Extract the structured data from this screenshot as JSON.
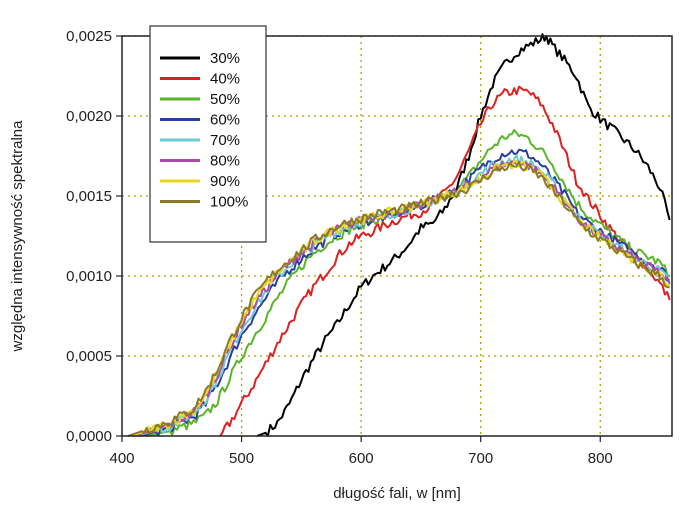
{
  "chart_data": {
    "type": "line",
    "xlabel": "długość fali, w [nm]",
    "ylabel": "względna intensywność spektralna",
    "xlim": [
      400,
      860
    ],
    "ylim": [
      0,
      0.0025
    ],
    "x_ticks": [
      {
        "value": 400,
        "label": "400"
      },
      {
        "value": 500,
        "label": "500"
      },
      {
        "value": 600,
        "label": "600"
      },
      {
        "value": 700,
        "label": "700"
      },
      {
        "value": 800,
        "label": "800"
      }
    ],
    "y_ticks": [
      {
        "value": 0,
        "label": "0,0000"
      },
      {
        "value": 0.0005,
        "label": "0,0005"
      },
      {
        "value": 0.001,
        "label": "0,0010"
      },
      {
        "value": 0.0015,
        "label": "0,0015"
      },
      {
        "value": 0.002,
        "label": "0,0020"
      },
      {
        "value": 0.0025,
        "label": "0,0025"
      }
    ],
    "grid": true,
    "legend_position": "top-left",
    "series": [
      {
        "name": "30%",
        "color": "#000000",
        "x": [
          513,
          520,
          530,
          540,
          550,
          560,
          570,
          580,
          590,
          600,
          610,
          620,
          630,
          640,
          650,
          660,
          670,
          680,
          690,
          700,
          710,
          720,
          730,
          740,
          750,
          755,
          760,
          770,
          780,
          790,
          800,
          810,
          820,
          830,
          840,
          850,
          858
        ],
        "y": [
          0,
          2e-05,
          8e-05,
          0.0002,
          0.00035,
          0.00048,
          0.0006,
          0.0007,
          0.00082,
          0.00093,
          0.001,
          0.00106,
          0.00112,
          0.0012,
          0.0013,
          0.00133,
          0.00142,
          0.00155,
          0.00175,
          0.002,
          0.0022,
          0.00232,
          0.0024,
          0.00244,
          0.00248,
          0.0025,
          0.00244,
          0.00235,
          0.00225,
          0.00206,
          0.00198,
          0.00192,
          0.00185,
          0.00178,
          0.00168,
          0.00155,
          0.00135
        ]
      },
      {
        "name": "40%",
        "color": "#e02020",
        "x": [
          482,
          490,
          500,
          510,
          520,
          530,
          540,
          550,
          560,
          570,
          580,
          590,
          600,
          610,
          620,
          630,
          640,
          650,
          660,
          670,
          680,
          690,
          700,
          710,
          720,
          730,
          740,
          750,
          760,
          770,
          780,
          790,
          800,
          810,
          820,
          830,
          840,
          850,
          858
        ],
        "y": [
          0,
          8e-05,
          0.0002,
          0.00032,
          0.00045,
          0.00058,
          0.0007,
          0.00082,
          0.00093,
          0.00102,
          0.00112,
          0.0012,
          0.00125,
          0.00128,
          0.00132,
          0.00135,
          0.00138,
          0.0014,
          0.00145,
          0.00152,
          0.00162,
          0.00178,
          0.00195,
          0.00208,
          0.00214,
          0.00216,
          0.00215,
          0.00208,
          0.00195,
          0.00178,
          0.0016,
          0.00148,
          0.00138,
          0.00128,
          0.0012,
          0.00112,
          0.00105,
          0.00095,
          0.00085
        ]
      },
      {
        "name": "50%",
        "color": "#5ab52a",
        "x": [
          420,
          440,
          460,
          470,
          480,
          490,
          500,
          510,
          520,
          530,
          540,
          550,
          560,
          570,
          580,
          590,
          600,
          610,
          620,
          630,
          640,
          650,
          660,
          670,
          680,
          690,
          700,
          710,
          720,
          730,
          740,
          750,
          760,
          770,
          780,
          790,
          800,
          810,
          820,
          830,
          840,
          850,
          858
        ],
        "y": [
          0,
          3e-05,
          8e-05,
          0.00013,
          0.00022,
          0.00036,
          0.0005,
          0.00062,
          0.00074,
          0.00086,
          0.00097,
          0.00106,
          0.00114,
          0.0012,
          0.00125,
          0.00129,
          0.00132,
          0.00135,
          0.00137,
          0.00139,
          0.00141,
          0.00144,
          0.00147,
          0.0015,
          0.00154,
          0.00162,
          0.00172,
          0.00181,
          0.00187,
          0.00189,
          0.00186,
          0.00179,
          0.0017,
          0.00158,
          0.00146,
          0.00138,
          0.00132,
          0.00126,
          0.0012,
          0.00115,
          0.00112,
          0.00108,
          0.001
        ]
      },
      {
        "name": "60%",
        "color": "#2a3fa0",
        "x": [
          415,
          440,
          460,
          470,
          480,
          490,
          500,
          510,
          520,
          530,
          540,
          550,
          560,
          570,
          580,
          590,
          600,
          610,
          620,
          630,
          640,
          650,
          660,
          670,
          680,
          690,
          700,
          710,
          720,
          730,
          740,
          750,
          760,
          770,
          780,
          790,
          800,
          810,
          820,
          830,
          840,
          850,
          858
        ],
        "y": [
          0,
          5e-05,
          0.00012,
          0.0002,
          0.00033,
          0.00048,
          0.00063,
          0.00075,
          0.00086,
          0.00096,
          0.00104,
          0.00111,
          0.00117,
          0.00122,
          0.00127,
          0.0013,
          0.00133,
          0.00135,
          0.00137,
          0.00139,
          0.00141,
          0.00144,
          0.00147,
          0.0015,
          0.00154,
          0.0016,
          0.00167,
          0.00173,
          0.00177,
          0.00178,
          0.00176,
          0.0017,
          0.00161,
          0.00151,
          0.0014,
          0.00133,
          0.00128,
          0.00123,
          0.00118,
          0.00113,
          0.00109,
          0.00105,
          0.00098
        ]
      },
      {
        "name": "70%",
        "color": "#6fc8d8",
        "x": [
          412,
          440,
          460,
          470,
          480,
          490,
          500,
          510,
          520,
          530,
          540,
          550,
          560,
          570,
          580,
          590,
          600,
          610,
          620,
          630,
          640,
          650,
          660,
          670,
          680,
          690,
          700,
          710,
          720,
          730,
          740,
          750,
          760,
          770,
          780,
          790,
          800,
          810,
          820,
          830,
          840,
          850,
          858
        ],
        "y": [
          0,
          6e-05,
          0.00014,
          0.00023,
          0.00036,
          0.00052,
          0.00067,
          0.00079,
          0.0009,
          0.00099,
          0.00107,
          0.00113,
          0.00119,
          0.00124,
          0.00128,
          0.00131,
          0.00134,
          0.00136,
          0.00138,
          0.0014,
          0.00142,
          0.00144,
          0.00147,
          0.0015,
          0.00153,
          0.00158,
          0.00164,
          0.00169,
          0.00172,
          0.00173,
          0.00171,
          0.00166,
          0.00158,
          0.00148,
          0.00138,
          0.00131,
          0.00126,
          0.00121,
          0.00116,
          0.00111,
          0.00107,
          0.00103,
          0.00096
        ]
      },
      {
        "name": "80%",
        "color": "#b04aa8",
        "x": [
          410,
          440,
          460,
          470,
          480,
          490,
          500,
          510,
          520,
          530,
          540,
          550,
          560,
          570,
          580,
          590,
          600,
          610,
          620,
          630,
          640,
          650,
          660,
          670,
          680,
          690,
          700,
          710,
          720,
          730,
          740,
          750,
          760,
          770,
          780,
          790,
          800,
          810,
          820,
          830,
          840,
          850,
          858
        ],
        "y": [
          0,
          7e-05,
          0.00015,
          0.00025,
          0.00039,
          0.00055,
          0.0007,
          0.00082,
          0.00092,
          0.00101,
          0.00108,
          0.00114,
          0.0012,
          0.00125,
          0.00129,
          0.00132,
          0.00135,
          0.00137,
          0.00139,
          0.00141,
          0.00142,
          0.00144,
          0.00147,
          0.0015,
          0.00153,
          0.00157,
          0.00162,
          0.00167,
          0.0017,
          0.00171,
          0.00169,
          0.00164,
          0.00156,
          0.00147,
          0.00137,
          0.0013,
          0.00125,
          0.0012,
          0.00115,
          0.0011,
          0.00106,
          0.00102,
          0.00095
        ]
      },
      {
        "name": "90%",
        "color": "#e8d818",
        "x": [
          408,
          440,
          460,
          470,
          480,
          490,
          500,
          510,
          520,
          530,
          540,
          550,
          560,
          570,
          580,
          590,
          600,
          610,
          620,
          630,
          640,
          650,
          660,
          670,
          680,
          690,
          700,
          710,
          720,
          730,
          740,
          750,
          760,
          770,
          780,
          790,
          800,
          810,
          820,
          830,
          840,
          850,
          858
        ],
        "y": [
          0,
          8e-05,
          0.00016,
          0.00026,
          0.0004,
          0.00057,
          0.00072,
          0.00084,
          0.00094,
          0.00102,
          0.00109,
          0.00115,
          0.00121,
          0.00126,
          0.0013,
          0.00133,
          0.00135,
          0.00137,
          0.00139,
          0.00141,
          0.00143,
          0.00145,
          0.00147,
          0.0015,
          0.00153,
          0.00156,
          0.00161,
          0.00166,
          0.00169,
          0.0017,
          0.00168,
          0.00163,
          0.00155,
          0.00146,
          0.00136,
          0.00129,
          0.00124,
          0.00119,
          0.00114,
          0.00109,
          0.00105,
          0.00101,
          0.00094
        ]
      },
      {
        "name": "100%",
        "color": "#8a7a28",
        "x": [
          405,
          440,
          460,
          470,
          480,
          490,
          500,
          510,
          520,
          530,
          540,
          550,
          560,
          570,
          580,
          590,
          600,
          610,
          620,
          630,
          640,
          650,
          660,
          670,
          680,
          690,
          700,
          710,
          720,
          730,
          740,
          750,
          760,
          770,
          780,
          790,
          800,
          810,
          820,
          830,
          840,
          850,
          858
        ],
        "y": [
          0,
          9e-05,
          0.00017,
          0.00028,
          0.00042,
          0.00059,
          0.00074,
          0.00086,
          0.00096,
          0.00104,
          0.0011,
          0.00116,
          0.00122,
          0.00127,
          0.00131,
          0.00134,
          0.00136,
          0.00138,
          0.0014,
          0.00141,
          0.00143,
          0.00145,
          0.00147,
          0.0015,
          0.00152,
          0.00155,
          0.0016,
          0.00165,
          0.00168,
          0.00169,
          0.00167,
          0.00162,
          0.00154,
          0.00145,
          0.00135,
          0.00128,
          0.00123,
          0.00118,
          0.00113,
          0.00108,
          0.00104,
          0.001,
          0.00093
        ]
      }
    ]
  }
}
